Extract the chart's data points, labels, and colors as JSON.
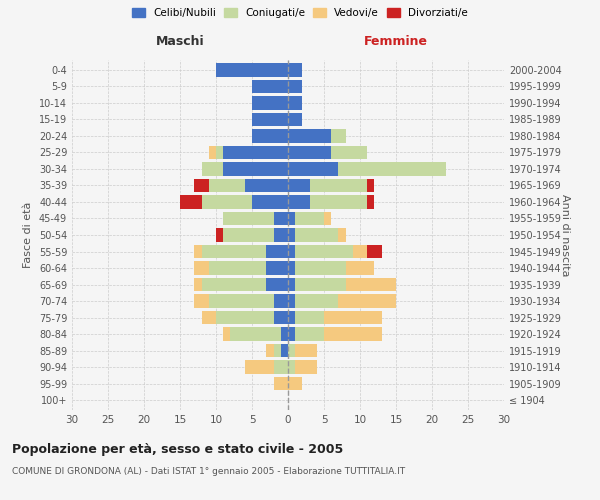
{
  "age_groups": [
    "100+",
    "95-99",
    "90-94",
    "85-89",
    "80-84",
    "75-79",
    "70-74",
    "65-69",
    "60-64",
    "55-59",
    "50-54",
    "45-49",
    "40-44",
    "35-39",
    "30-34",
    "25-29",
    "20-24",
    "15-19",
    "10-14",
    "5-9",
    "0-4"
  ],
  "birth_years": [
    "≤ 1904",
    "1905-1909",
    "1910-1914",
    "1915-1919",
    "1920-1924",
    "1925-1929",
    "1930-1934",
    "1935-1939",
    "1940-1944",
    "1945-1949",
    "1950-1954",
    "1955-1959",
    "1960-1964",
    "1965-1969",
    "1970-1974",
    "1975-1979",
    "1980-1984",
    "1985-1989",
    "1990-1994",
    "1995-1999",
    "2000-2004"
  ],
  "male": {
    "celibi": [
      0,
      0,
      0,
      1,
      1,
      2,
      2,
      3,
      3,
      3,
      2,
      2,
      5,
      6,
      9,
      9,
      5,
      5,
      5,
      5,
      10
    ],
    "coniugati": [
      0,
      0,
      2,
      1,
      7,
      8,
      9,
      9,
      8,
      9,
      7,
      7,
      7,
      5,
      3,
      1,
      0,
      0,
      0,
      0,
      0
    ],
    "vedovi": [
      0,
      2,
      4,
      1,
      1,
      2,
      2,
      1,
      2,
      1,
      0,
      0,
      0,
      0,
      0,
      1,
      0,
      0,
      0,
      0,
      0
    ],
    "divorziati": [
      0,
      0,
      0,
      0,
      0,
      0,
      0,
      0,
      0,
      0,
      1,
      0,
      3,
      2,
      0,
      0,
      0,
      0,
      0,
      0,
      0
    ]
  },
  "female": {
    "nubili": [
      0,
      0,
      0,
      0,
      1,
      1,
      1,
      1,
      1,
      1,
      1,
      1,
      3,
      3,
      7,
      6,
      6,
      2,
      2,
      2,
      2
    ],
    "coniugate": [
      0,
      0,
      1,
      1,
      4,
      4,
      6,
      7,
      7,
      8,
      6,
      4,
      8,
      8,
      15,
      5,
      2,
      0,
      0,
      0,
      0
    ],
    "vedove": [
      0,
      2,
      3,
      3,
      8,
      8,
      8,
      7,
      4,
      2,
      1,
      1,
      0,
      0,
      0,
      0,
      0,
      0,
      0,
      0,
      0
    ],
    "divorziate": [
      0,
      0,
      0,
      0,
      0,
      0,
      0,
      0,
      0,
      2,
      0,
      0,
      1,
      1,
      0,
      0,
      0,
      0,
      0,
      0,
      0
    ]
  },
  "colors": {
    "celibi": "#4472c4",
    "coniugati": "#c5d9a0",
    "vedovi": "#f5c97f",
    "divorziati": "#cc2222"
  },
  "title": "Popolazione per età, sesso e stato civile - 2005",
  "subtitle": "COMUNE DI GRONDONA (AL) - Dati ISTAT 1° gennaio 2005 - Elaborazione TUTTITALIA.IT",
  "xlabel_left": "Maschi",
  "xlabel_right": "Femmine",
  "ylabel_left": "Fasce di età",
  "ylabel_right": "Anni di nascita",
  "xlim": 30,
  "bg_color": "#f5f5f5",
  "grid_color": "#cccccc",
  "bar_height": 0.8,
  "legend_labels": [
    "Celibi/Nubili",
    "Coniugati/e",
    "Vedovi/e",
    "Divorziati/e"
  ]
}
